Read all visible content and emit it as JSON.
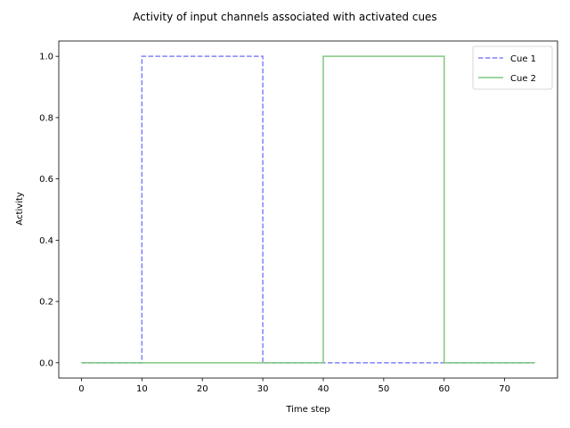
{
  "chart_data": {
    "type": "line",
    "title": "Activity of input channels associated with activated cues",
    "xlabel": "Time step",
    "ylabel": "Activity",
    "xlim": [
      -3.75,
      78.75
    ],
    "ylim": [
      -0.05,
      1.05
    ],
    "xticks": [
      0,
      10,
      20,
      30,
      40,
      50,
      60,
      70
    ],
    "yticks": [
      0.0,
      0.2,
      0.4,
      0.6,
      0.8,
      1.0
    ],
    "xtick_labels": [
      "0",
      "10",
      "20",
      "30",
      "40",
      "50",
      "60",
      "70"
    ],
    "ytick_labels": [
      "0.0",
      "0.2",
      "0.4",
      "0.6",
      "0.8",
      "1.0"
    ],
    "grid": false,
    "legend_position": "top-right",
    "series": [
      {
        "name": "Cue 1",
        "color": "#8080ff",
        "style": "dashed",
        "x": [
          0,
          10,
          10,
          30,
          30,
          75
        ],
        "y": [
          0,
          0,
          1,
          1,
          0,
          0
        ]
      },
      {
        "name": "Cue 2",
        "color": "#7fc87f",
        "style": "solid",
        "x": [
          0,
          40,
          40,
          60,
          60,
          75
        ],
        "y": [
          0,
          0,
          1,
          1,
          0,
          0
        ]
      }
    ]
  }
}
